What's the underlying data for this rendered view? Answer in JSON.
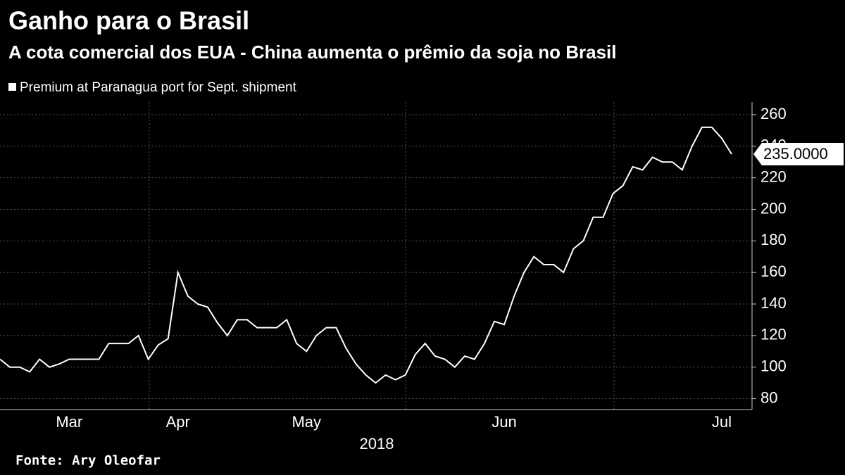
{
  "chart_data": {
    "type": "line",
    "title": "Ganho para o Brasil",
    "subtitle": "A cota comercial dos EUA - China aumenta o prêmio da soja no Brasil",
    "source": "Fonte:  Ary Oleofar",
    "xlabel": "2018",
    "categories": [
      null,
      null,
      null,
      null,
      null,
      null,
      null,
      "Mar",
      null,
      null,
      null,
      null,
      null,
      null,
      null,
      null,
      null,
      null,
      "Apr",
      null,
      null,
      null,
      null,
      null,
      null,
      null,
      null,
      null,
      null,
      null,
      null,
      "May",
      null,
      null,
      null,
      null,
      null,
      null,
      null,
      null,
      null,
      null,
      null,
      null,
      null,
      null,
      null,
      null,
      null,
      null,
      null,
      "Jun",
      null,
      null,
      null,
      null,
      null,
      null,
      null,
      null,
      null,
      null,
      null,
      null,
      null,
      null,
      null,
      null,
      null,
      null,
      null,
      null,
      null,
      "Jul",
      null
    ],
    "series": [
      {
        "name": "Premium at Paranagua port for Sept. shipment",
        "color": "#ffffff",
        "values": [
          105,
          100,
          100,
          97,
          105,
          100,
          102,
          105,
          105,
          105,
          105,
          115,
          115,
          115,
          120,
          105,
          114,
          118,
          160,
          145,
          140,
          138,
          128,
          120,
          130,
          130,
          125,
          125,
          125,
          130,
          115,
          110,
          120,
          125,
          125,
          112,
          102,
          95,
          90,
          95,
          92,
          95,
          108,
          115,
          107,
          105,
          100,
          107,
          105,
          115,
          129,
          127,
          145,
          160,
          170,
          165,
          165,
          160,
          175,
          180,
          195,
          195,
          210,
          215,
          227,
          225,
          233,
          230,
          230,
          225,
          240,
          252,
          252,
          245,
          235
        ],
        "value_labels": [
          null,
          null,
          null,
          null,
          null,
          null,
          null,
          null,
          null,
          null,
          null,
          null,
          null,
          null,
          null,
          null,
          null,
          null,
          null,
          null,
          null,
          null,
          null,
          null,
          null,
          null,
          null,
          null,
          null,
          null,
          null,
          null,
          null,
          null,
          null,
          null,
          null,
          null,
          null,
          null,
          null,
          null,
          null,
          null,
          null,
          null,
          null,
          null,
          null,
          null,
          null,
          null,
          null,
          null,
          null,
          null,
          null,
          null,
          null,
          null,
          null,
          null,
          null,
          null,
          null,
          null,
          null,
          null,
          null,
          null,
          null,
          null,
          null,
          null,
          "235.0000"
        ]
      }
    ],
    "ylim": [
      74,
      268
    ],
    "yticks": [
      80,
      100,
      120,
      140,
      160,
      180,
      200,
      220,
      240,
      260
    ],
    "grid": true
  }
}
